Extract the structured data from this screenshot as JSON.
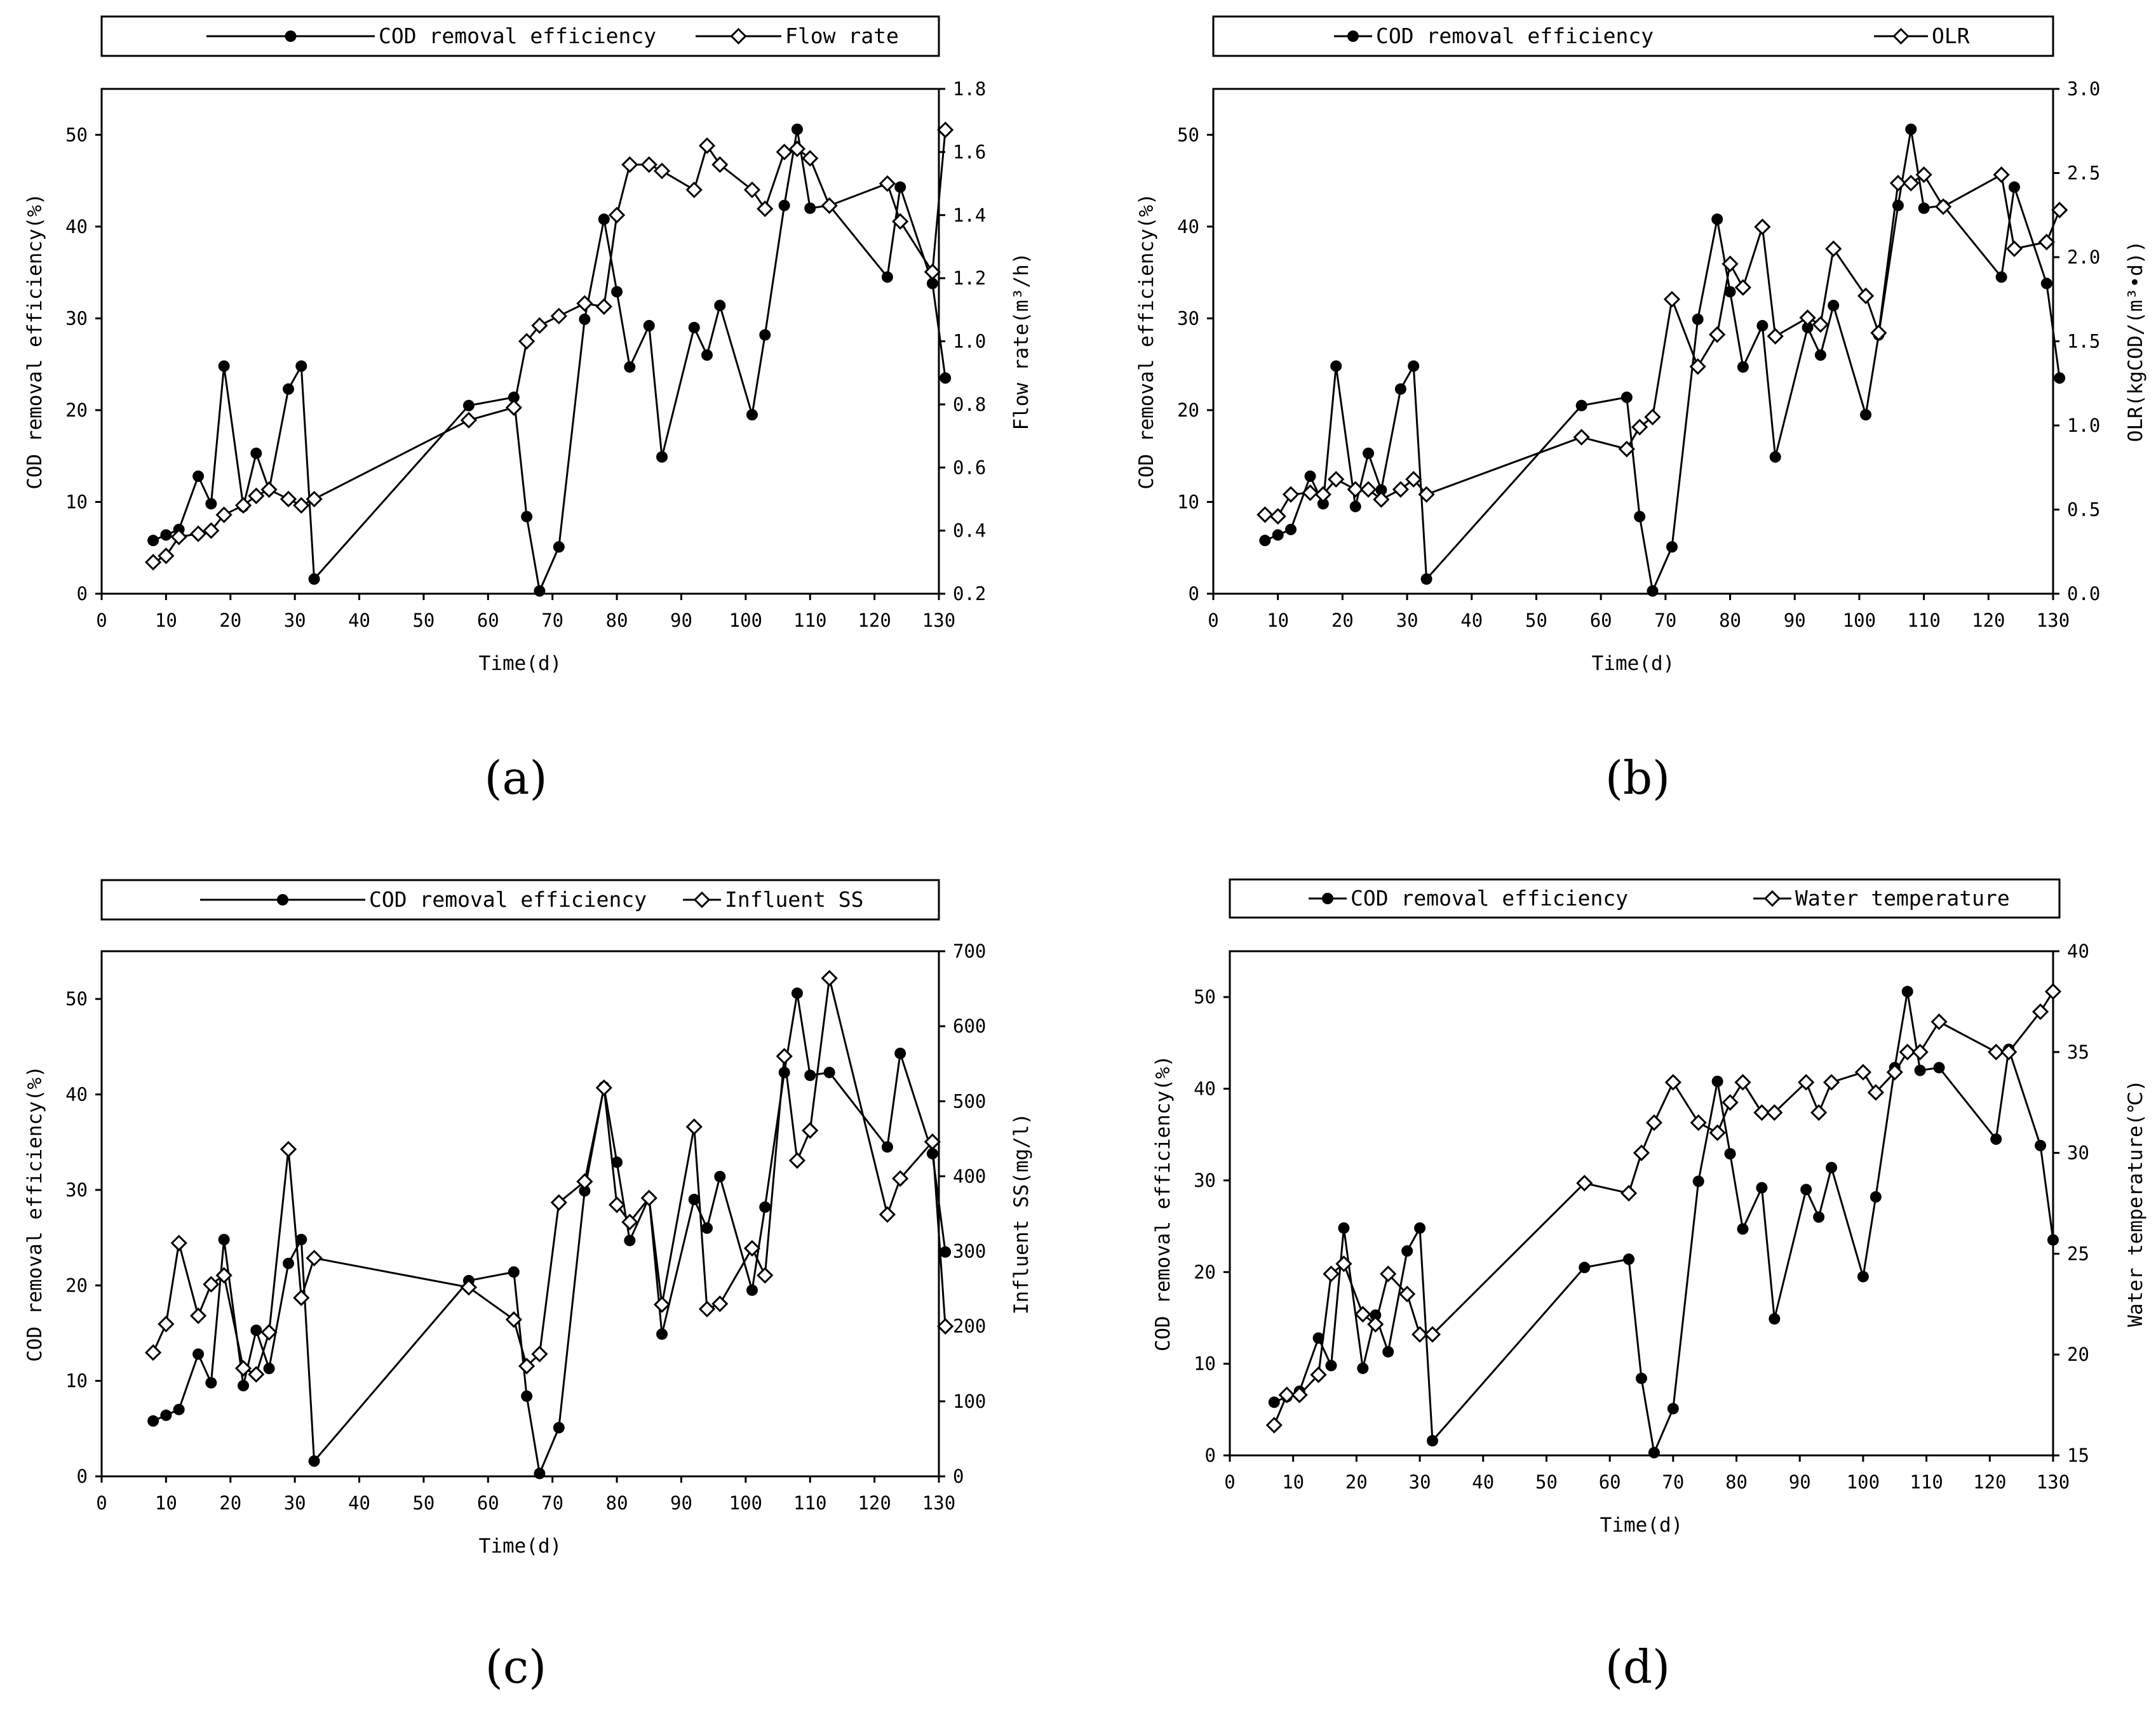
{
  "chart_data": [
    {
      "type": "line",
      "panel_label": "(a)",
      "xlabel": "Time(d)",
      "ylabel": "COD removal efficiency(%)",
      "y2label": "Flow rate(m³/h)",
      "xlim": [
        0,
        130
      ],
      "xticks": [
        0,
        10,
        20,
        30,
        40,
        50,
        60,
        70,
        80,
        90,
        100,
        110,
        120,
        130
      ],
      "ylim": [
        0,
        55
      ],
      "yticks": [
        0,
        10,
        20,
        30,
        40,
        50
      ],
      "y2lim": [
        0.2,
        1.8
      ],
      "y2ticks": [
        "0.2",
        "0.4",
        "0.6",
        "0.8",
        "1.0",
        "1.2",
        "1.4",
        "1.6",
        "1.8"
      ],
      "legend_position": "top",
      "series": [
        {
          "name": "COD removal efficiency",
          "axis": "left",
          "marker": "filled-circle",
          "x": [
            8,
            10,
            12,
            15,
            17,
            19,
            22,
            24,
            26,
            29,
            31,
            33,
            57,
            64,
            66,
            68,
            71,
            75,
            78,
            80,
            82,
            85,
            87,
            92,
            94,
            96,
            101,
            103,
            106,
            108,
            110,
            113,
            122,
            124,
            129,
            131
          ],
          "y": [
            5.8,
            6.4,
            7,
            12.8,
            9.8,
            24.8,
            9.5,
            15.3,
            11.3,
            22.3,
            24.8,
            1.6,
            20.5,
            21.4,
            8.4,
            0.3,
            5.1,
            29.9,
            40.8,
            32.9,
            24.7,
            29.2,
            14.9,
            29,
            26,
            31.4,
            19.5,
            28.2,
            42.3,
            50.6,
            42,
            42.3,
            34.5,
            44.3,
            33.8,
            23.5
          ]
        },
        {
          "name": "Flow rate",
          "axis": "right",
          "marker": "open-diamond",
          "x": [
            8,
            10,
            12,
            15,
            17,
            19,
            22,
            24,
            26,
            29,
            31,
            33,
            57,
            64,
            66,
            68,
            71,
            75,
            78,
            80,
            82,
            85,
            87,
            92,
            94,
            96,
            101,
            103,
            106,
            108,
            110,
            113,
            122,
            124,
            129,
            131
          ],
          "y": [
            0.3,
            0.32,
            0.38,
            0.39,
            0.4,
            0.45,
            0.48,
            0.51,
            0.53,
            0.5,
            0.48,
            0.5,
            0.75,
            0.79,
            1.0,
            1.05,
            1.08,
            1.12,
            1.11,
            1.4,
            1.56,
            1.56,
            1.54,
            1.48,
            1.62,
            1.56,
            1.48,
            1.42,
            1.6,
            1.61,
            1.58,
            1.43,
            1.5,
            1.38,
            1.22,
            1.67
          ]
        }
      ]
    },
    {
      "type": "line",
      "panel_label": "(b)",
      "xlabel": "Time(d)",
      "ylabel": "COD removal efficiency(%)",
      "y2label": "OLR(kgCOD/(m³•d))",
      "xlim": [
        0,
        130
      ],
      "xticks": [
        0,
        10,
        20,
        30,
        40,
        50,
        60,
        70,
        80,
        90,
        100,
        110,
        120,
        130
      ],
      "ylim": [
        0,
        55
      ],
      "yticks": [
        0,
        10,
        20,
        30,
        40,
        50
      ],
      "y2lim": [
        0,
        3
      ],
      "y2ticks": [
        "0.0",
        "0.5",
        "1.0",
        "1.5",
        "2.0",
        "2.5",
        "3.0"
      ],
      "legend_position": "top",
      "series": [
        {
          "name": "COD removal efficiency",
          "axis": "left",
          "marker": "filled-circle",
          "x": [
            8,
            10,
            12,
            15,
            17,
            19,
            22,
            24,
            26,
            29,
            31,
            33,
            57,
            64,
            66,
            68,
            71,
            75,
            78,
            80,
            82,
            85,
            87,
            92,
            94,
            96,
            101,
            103,
            106,
            108,
            110,
            113,
            122,
            124,
            129,
            131
          ],
          "y": [
            5.8,
            6.4,
            7,
            12.8,
            9.8,
            24.8,
            9.5,
            15.3,
            11.3,
            22.3,
            24.8,
            1.6,
            20.5,
            21.4,
            8.4,
            0.3,
            5.1,
            29.9,
            40.8,
            32.9,
            24.7,
            29.2,
            14.9,
            29,
            26,
            31.4,
            19.5,
            28.2,
            42.3,
            50.6,
            42,
            42.3,
            34.5,
            44.3,
            33.8,
            23.5
          ]
        },
        {
          "name": "OLR",
          "axis": "right",
          "marker": "open-diamond",
          "x": [
            8,
            10,
            12,
            15,
            17,
            19,
            22,
            24,
            26,
            29,
            31,
            33,
            57,
            64,
            66,
            68,
            71,
            75,
            78,
            80,
            82,
            85,
            87,
            92,
            94,
            96,
            101,
            103,
            106,
            108,
            110,
            113,
            122,
            124,
            129,
            131
          ],
          "y": [
            0.47,
            0.46,
            0.59,
            0.6,
            0.59,
            0.68,
            0.62,
            0.62,
            0.56,
            0.62,
            0.68,
            0.59,
            0.93,
            0.86,
            0.99,
            1.05,
            1.75,
            1.35,
            1.54,
            1.96,
            1.82,
            2.18,
            1.53,
            1.64,
            1.6,
            2.05,
            1.77,
            1.55,
            2.44,
            2.44,
            2.49,
            2.3,
            2.49,
            2.05,
            2.09,
            2.28
          ]
        }
      ]
    },
    {
      "type": "line",
      "panel_label": "(c)",
      "xlabel": "Time(d)",
      "ylabel": "COD removal efficiency(%)",
      "y2label": "Influent SS(mg/l)",
      "xlim": [
        0,
        130
      ],
      "xticks": [
        0,
        10,
        20,
        30,
        40,
        50,
        60,
        70,
        80,
        90,
        100,
        110,
        120,
        130
      ],
      "ylim": [
        0,
        55
      ],
      "yticks": [
        0,
        10,
        20,
        30,
        40,
        50
      ],
      "y2lim": [
        0,
        700
      ],
      "y2ticks": [
        "0",
        "100",
        "200",
        "300",
        "400",
        "500",
        "600",
        "700"
      ],
      "legend_position": "top",
      "series": [
        {
          "name": "COD removal efficiency",
          "axis": "left",
          "marker": "filled-circle",
          "x": [
            8,
            10,
            12,
            15,
            17,
            19,
            22,
            24,
            26,
            29,
            31,
            33,
            57,
            64,
            66,
            68,
            71,
            75,
            78,
            80,
            82,
            85,
            87,
            92,
            94,
            96,
            101,
            103,
            106,
            108,
            110,
            113,
            122,
            124,
            129,
            131
          ],
          "y": [
            5.8,
            6.4,
            7,
            12.8,
            9.8,
            24.8,
            9.5,
            15.3,
            11.3,
            22.3,
            24.8,
            1.6,
            20.5,
            21.4,
            8.4,
            0.3,
            5.1,
            29.9,
            40.8,
            32.9,
            24.7,
            29.2,
            14.9,
            29,
            26,
            31.4,
            19.5,
            28.2,
            42.3,
            50.6,
            42,
            42.3,
            34.5,
            44.3,
            33.8,
            23.5
          ]
        },
        {
          "name": "Influent SS",
          "axis": "right",
          "marker": "open-diamond",
          "x": [
            8,
            10,
            12,
            15,
            17,
            19,
            22,
            24,
            26,
            29,
            31,
            33,
            57,
            64,
            66,
            68,
            71,
            75,
            78,
            80,
            82,
            85,
            87,
            92,
            94,
            96,
            101,
            103,
            106,
            108,
            110,
            113,
            122,
            124,
            129,
            131
          ],
          "y": [
            165,
            203,
            311,
            214,
            256,
            268,
            144,
            136,
            192,
            436,
            238,
            291,
            252,
            209,
            147,
            163,
            365,
            393,
            518,
            362,
            339,
            371,
            229,
            466,
            223,
            230,
            304,
            268,
            560,
            421,
            461,
            664,
            349,
            397,
            446,
            200
          ]
        }
      ]
    },
    {
      "type": "line",
      "panel_label": "(d)",
      "xlabel": "Time(d)",
      "ylabel": "COD removal efficiency(%)",
      "y2label": "Water temperature(℃)",
      "xlim": [
        0,
        130
      ],
      "xticks": [
        0,
        10,
        20,
        30,
        40,
        50,
        60,
        70,
        80,
        90,
        100,
        110,
        120,
        130
      ],
      "ylim": [
        0,
        55
      ],
      "yticks": [
        0,
        10,
        20,
        30,
        40,
        50
      ],
      "y2lim": [
        15,
        40
      ],
      "y2ticks": [
        "15",
        "20",
        "25",
        "30",
        "35",
        "40"
      ],
      "legend_position": "top",
      "series": [
        {
          "name": "COD removal efficiency",
          "axis": "left",
          "marker": "filled-circle",
          "x": [
            7,
            9,
            11,
            14,
            16,
            18,
            21,
            23,
            25,
            28,
            30,
            32,
            56,
            63,
            65,
            67,
            70,
            74,
            77,
            79,
            81,
            84,
            86,
            91,
            93,
            95,
            100,
            102,
            105,
            107,
            109,
            112,
            121,
            123,
            128,
            130
          ],
          "y": [
            5.8,
            6.4,
            7,
            12.8,
            9.8,
            24.8,
            9.5,
            15.3,
            11.3,
            22.3,
            24.8,
            1.6,
            20.5,
            21.4,
            8.4,
            0.3,
            5.1,
            29.9,
            40.8,
            32.9,
            24.7,
            29.2,
            14.9,
            29,
            26,
            31.4,
            19.5,
            28.2,
            42.3,
            50.6,
            42,
            42.3,
            34.5,
            44.3,
            33.8,
            23.5
          ]
        },
        {
          "name": "Water temperature",
          "axis": "right",
          "marker": "open-diamond",
          "x": [
            7,
            9,
            11,
            14,
            16,
            18,
            21,
            23,
            25,
            28,
            30,
            32,
            56,
            63,
            65,
            67,
            70,
            74,
            77,
            79,
            81,
            84,
            86,
            91,
            93,
            95,
            100,
            102,
            105,
            107,
            109,
            112,
            121,
            123,
            128,
            130
          ],
          "y": [
            16.5,
            18,
            18,
            19,
            24,
            24.5,
            22,
            21.5,
            24,
            23,
            21,
            21,
            28.5,
            28,
            30,
            31.5,
            33.5,
            31.5,
            31,
            32.5,
            33.5,
            32,
            32,
            33.5,
            32,
            33.5,
            34,
            33,
            34,
            35,
            35,
            36.5,
            35,
            35,
            37,
            38
          ]
        }
      ]
    }
  ]
}
